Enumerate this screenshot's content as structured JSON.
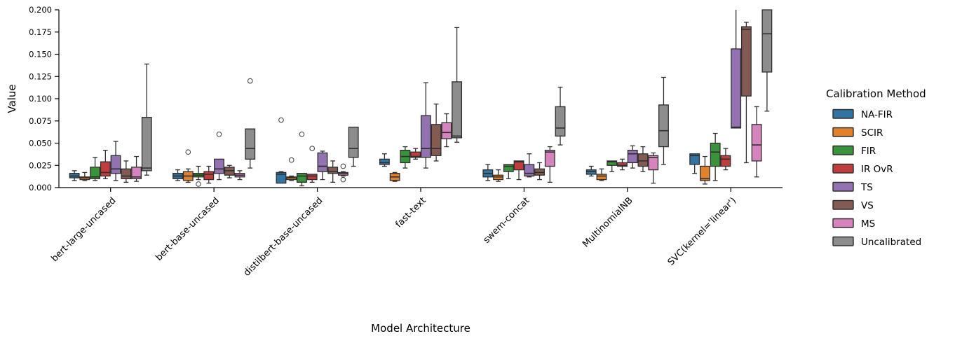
{
  "chart_data": {
    "type": "boxplot",
    "title": "",
    "xlabel": "Model Architecture",
    "ylabel": "Value",
    "ylim": [
      0,
      0.2
    ],
    "grid": false,
    "yticks": [
      0,
      0.025,
      0.05,
      0.075,
      0.1,
      0.125,
      0.15,
      0.175,
      0.2
    ],
    "ytick_labels": [
      "0.000",
      "0.025",
      "0.050",
      "0.075",
      "0.100",
      "0.125",
      "0.150",
      "0.175",
      "0.200"
    ],
    "categories": [
      "bert-large-uncased",
      "bert-base-uncased",
      "distilbert-base-uncased",
      "fast-text",
      "swem-concat",
      "MultinomialNB",
      "SVC(kernel='linear')"
    ],
    "legend": {
      "title": "Calibration Method",
      "position": "right"
    },
    "style": {
      "box_edge_color": "#2e2e2e",
      "axis_color": "#000000",
      "flier_stroke": "#4a4a4a"
    },
    "series": [
      {
        "name": "NA-FIR",
        "color": "#3274a1",
        "boxes": [
          {
            "whislo": 0.008,
            "q1": 0.011,
            "med": 0.013,
            "q3": 0.016,
            "whishi": 0.019,
            "fliers": []
          },
          {
            "whislo": 0.008,
            "q1": 0.01,
            "med": 0.013,
            "q3": 0.016,
            "whishi": 0.02,
            "fliers": []
          },
          {
            "whislo": 0.005,
            "q1": 0.005,
            "med": 0.015,
            "q3": 0.017,
            "whishi": 0.018,
            "fliers": [
              0.076
            ]
          },
          {
            "whislo": 0.024,
            "q1": 0.026,
            "med": 0.028,
            "q3": 0.032,
            "whishi": 0.038,
            "fliers": []
          },
          {
            "whislo": 0.008,
            "q1": 0.012,
            "med": 0.016,
            "q3": 0.02,
            "whishi": 0.026,
            "fliers": []
          },
          {
            "whislo": 0.013,
            "q1": 0.015,
            "med": 0.018,
            "q3": 0.02,
            "whishi": 0.024,
            "fliers": []
          },
          {
            "whislo": 0.016,
            "q1": 0.026,
            "med": 0.036,
            "q3": 0.038,
            "whishi": 0.038,
            "fliers": []
          }
        ]
      },
      {
        "name": "SCIR",
        "color": "#e1812c",
        "boxes": [
          {
            "whislo": 0.008,
            "q1": 0.009,
            "med": 0.011,
            "q3": 0.012,
            "whishi": 0.017,
            "fliers": []
          },
          {
            "whislo": 0.006,
            "q1": 0.008,
            "med": 0.013,
            "q3": 0.018,
            "whishi": 0.021,
            "fliers": [
              0.04
            ]
          },
          {
            "whislo": 0.008,
            "q1": 0.009,
            "med": 0.011,
            "q3": 0.012,
            "whishi": 0.013,
            "fliers": [
              0.031
            ]
          },
          {
            "whislo": 0.007,
            "q1": 0.008,
            "med": 0.012,
            "q3": 0.016,
            "whishi": 0.017,
            "fliers": []
          },
          {
            "whislo": 0.007,
            "q1": 0.009,
            "med": 0.012,
            "q3": 0.014,
            "whishi": 0.02,
            "fliers": []
          },
          {
            "whislo": 0.008,
            "q1": 0.009,
            "med": 0.013,
            "q3": 0.015,
            "whishi": 0.021,
            "fliers": []
          },
          {
            "whislo": 0.004,
            "q1": 0.008,
            "med": 0.01,
            "q3": 0.024,
            "whishi": 0.035,
            "fliers": []
          }
        ]
      },
      {
        "name": "FIR",
        "color": "#3a923a",
        "boxes": [
          {
            "whislo": 0.008,
            "q1": 0.01,
            "med": 0.012,
            "q3": 0.023,
            "whishi": 0.034,
            "fliers": []
          },
          {
            "whislo": 0.009,
            "q1": 0.012,
            "med": 0.014,
            "q3": 0.016,
            "whishi": 0.024,
            "fliers": [
              0.004
            ]
          },
          {
            "whislo": 0.002,
            "q1": 0.006,
            "med": 0.013,
            "q3": 0.016,
            "whishi": 0.016,
            "fliers": [
              0.06
            ]
          },
          {
            "whislo": 0.022,
            "q1": 0.028,
            "med": 0.035,
            "q3": 0.042,
            "whishi": 0.046,
            "fliers": []
          },
          {
            "whislo": 0.01,
            "q1": 0.018,
            "med": 0.024,
            "q3": 0.026,
            "whishi": 0.026,
            "fliers": []
          },
          {
            "whislo": 0.018,
            "q1": 0.025,
            "med": 0.029,
            "q3": 0.03,
            "whishi": 0.03,
            "fliers": []
          },
          {
            "whislo": 0.008,
            "q1": 0.024,
            "med": 0.04,
            "q3": 0.05,
            "whishi": 0.061,
            "fliers": []
          }
        ]
      },
      {
        "name": "IR OvR",
        "color": "#c03d3e",
        "boxes": [
          {
            "whislo": 0.01,
            "q1": 0.013,
            "med": 0.017,
            "q3": 0.029,
            "whishi": 0.042,
            "fliers": []
          },
          {
            "whislo": 0.005,
            "q1": 0.009,
            "med": 0.015,
            "q3": 0.018,
            "whishi": 0.024,
            "fliers": []
          },
          {
            "whislo": 0.006,
            "q1": 0.009,
            "med": 0.013,
            "q3": 0.015,
            "whishi": 0.015,
            "fliers": [
              0.044
            ]
          },
          {
            "whislo": 0.032,
            "q1": 0.034,
            "med": 0.035,
            "q3": 0.04,
            "whishi": 0.044,
            "fliers": []
          },
          {
            "whislo": 0.009,
            "q1": 0.02,
            "med": 0.029,
            "q3": 0.03,
            "whishi": 0.03,
            "fliers": []
          },
          {
            "whislo": 0.02,
            "q1": 0.024,
            "med": 0.025,
            "q3": 0.028,
            "whishi": 0.032,
            "fliers": []
          },
          {
            "whislo": 0.02,
            "q1": 0.024,
            "med": 0.032,
            "q3": 0.036,
            "whishi": 0.044,
            "fliers": []
          }
        ]
      },
      {
        "name": "TS",
        "color": "#9372b2",
        "boxes": [
          {
            "whislo": 0.008,
            "q1": 0.016,
            "med": 0.021,
            "q3": 0.036,
            "whishi": 0.052,
            "fliers": []
          },
          {
            "whislo": 0.009,
            "q1": 0.016,
            "med": 0.021,
            "q3": 0.032,
            "whishi": 0.032,
            "fliers": [
              0.06
            ]
          },
          {
            "whislo": 0.009,
            "q1": 0.018,
            "med": 0.024,
            "q3": 0.039,
            "whishi": 0.041,
            "fliers": []
          },
          {
            "whislo": 0.022,
            "q1": 0.034,
            "med": 0.044,
            "q3": 0.081,
            "whishi": 0.118,
            "fliers": []
          },
          {
            "whislo": 0.012,
            "q1": 0.013,
            "med": 0.016,
            "q3": 0.026,
            "whishi": 0.038,
            "fliers": []
          },
          {
            "whislo": 0.022,
            "q1": 0.028,
            "med": 0.038,
            "q3": 0.042,
            "whishi": 0.047,
            "fliers": []
          },
          {
            "whislo": 0.067,
            "q1": 0.067,
            "med": 0.068,
            "q3": 0.156,
            "whishi": 0.2,
            "fliers": []
          }
        ]
      },
      {
        "name": "VS",
        "color": "#845b53",
        "boxes": [
          {
            "whislo": 0.006,
            "q1": 0.01,
            "med": 0.013,
            "q3": 0.021,
            "whishi": 0.03,
            "fliers": []
          },
          {
            "whislo": 0.011,
            "q1": 0.014,
            "med": 0.019,
            "q3": 0.023,
            "whishi": 0.025,
            "fliers": []
          },
          {
            "whislo": 0.006,
            "q1": 0.016,
            "med": 0.018,
            "q3": 0.023,
            "whishi": 0.03,
            "fliers": []
          },
          {
            "whislo": 0.03,
            "q1": 0.036,
            "med": 0.044,
            "q3": 0.071,
            "whishi": 0.094,
            "fliers": []
          },
          {
            "whislo": 0.009,
            "q1": 0.014,
            "med": 0.017,
            "q3": 0.021,
            "whishi": 0.028,
            "fliers": []
          },
          {
            "whislo": 0.018,
            "q1": 0.024,
            "med": 0.03,
            "q3": 0.038,
            "whishi": 0.046,
            "fliers": []
          },
          {
            "whislo": 0.028,
            "q1": 0.103,
            "med": 0.178,
            "q3": 0.181,
            "whishi": 0.186,
            "fliers": []
          }
        ]
      },
      {
        "name": "MS",
        "color": "#d684bd",
        "boxes": [
          {
            "whislo": 0.007,
            "q1": 0.01,
            "med": 0.012,
            "q3": 0.023,
            "whishi": 0.035,
            "fliers": []
          },
          {
            "whislo": 0.009,
            "q1": 0.012,
            "med": 0.014,
            "q3": 0.016,
            "whishi": 0.019,
            "fliers": []
          },
          {
            "whislo": 0.013,
            "q1": 0.014,
            "med": 0.016,
            "q3": 0.017,
            "whishi": 0.018,
            "fliers": [
              0.024,
              0.009
            ]
          },
          {
            "whislo": 0.046,
            "q1": 0.055,
            "med": 0.062,
            "q3": 0.073,
            "whishi": 0.083,
            "fliers": []
          },
          {
            "whislo": 0.006,
            "q1": 0.024,
            "med": 0.04,
            "q3": 0.042,
            "whishi": 0.046,
            "fliers": []
          },
          {
            "whislo": 0.005,
            "q1": 0.02,
            "med": 0.034,
            "q3": 0.036,
            "whishi": 0.039,
            "fliers": []
          },
          {
            "whislo": 0.012,
            "q1": 0.03,
            "med": 0.048,
            "q3": 0.071,
            "whishi": 0.091,
            "fliers": []
          }
        ]
      },
      {
        "name": "Uncalibrated",
        "color": "#8d8d8d",
        "boxes": [
          {
            "whislo": 0.014,
            "q1": 0.019,
            "med": 0.022,
            "q3": 0.079,
            "whishi": 0.139,
            "fliers": []
          },
          {
            "whislo": 0.022,
            "q1": 0.032,
            "med": 0.044,
            "q3": 0.066,
            "whishi": 0.066,
            "fliers": [
              0.12
            ]
          },
          {
            "whislo": 0.024,
            "q1": 0.034,
            "med": 0.044,
            "q3": 0.068,
            "whishi": 0.068,
            "fliers": []
          },
          {
            "whislo": 0.051,
            "q1": 0.056,
            "med": 0.058,
            "q3": 0.119,
            "whishi": 0.18,
            "fliers": []
          },
          {
            "whislo": 0.048,
            "q1": 0.058,
            "med": 0.067,
            "q3": 0.091,
            "whishi": 0.113,
            "fliers": []
          },
          {
            "whislo": 0.026,
            "q1": 0.046,
            "med": 0.064,
            "q3": 0.093,
            "whishi": 0.124,
            "fliers": []
          },
          {
            "whislo": 0.086,
            "q1": 0.13,
            "med": 0.173,
            "q3": 0.2,
            "whishi": 0.2,
            "fliers": []
          }
        ]
      }
    ]
  }
}
